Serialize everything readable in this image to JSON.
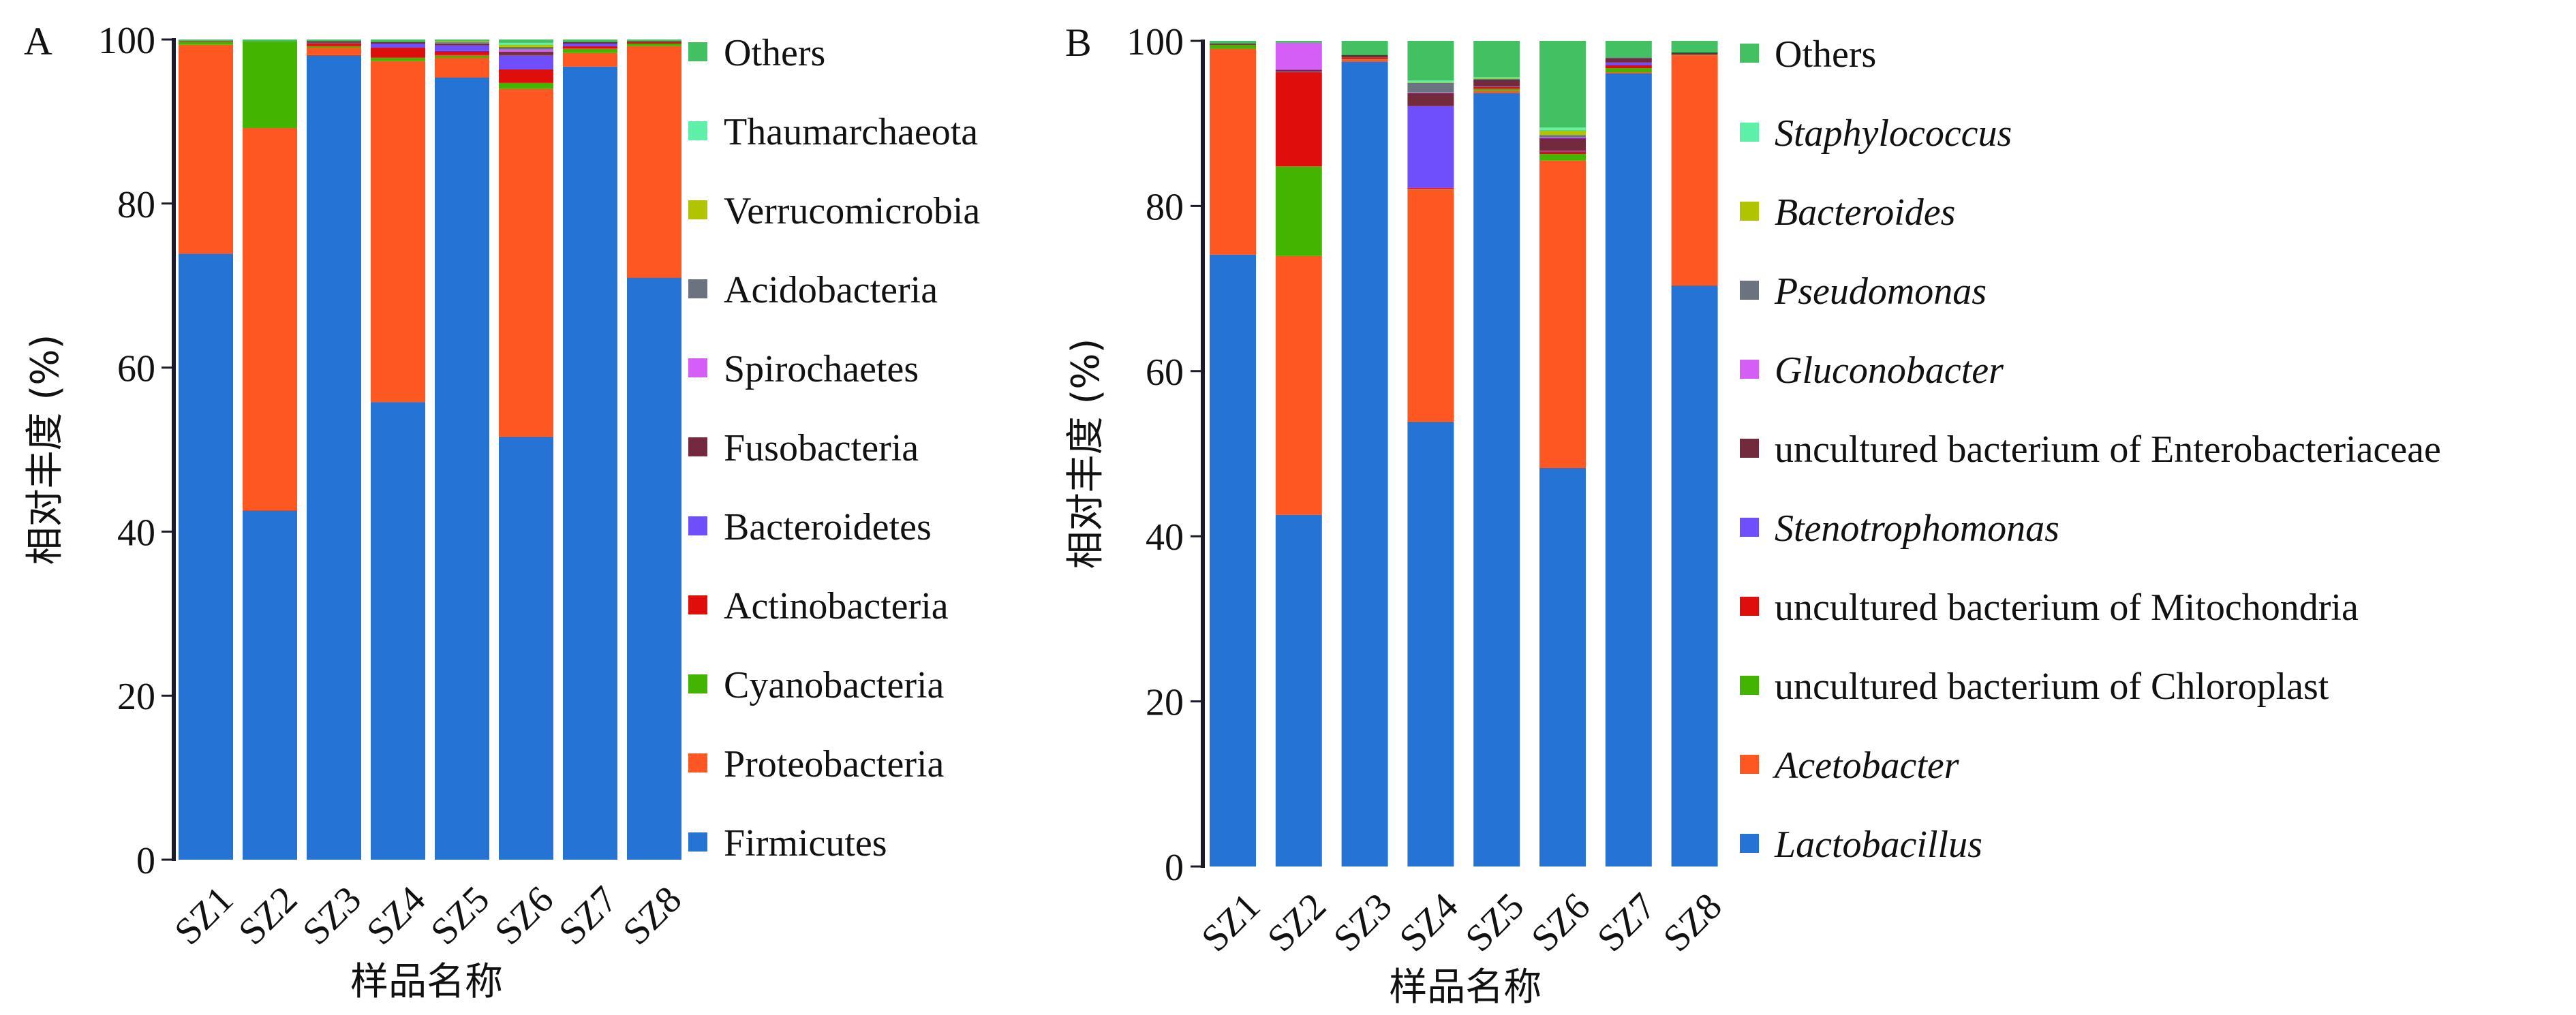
{
  "figure": {
    "panel_a_label": "A",
    "panel_b_label": "B"
  },
  "chart_data": [
    {
      "id": "A",
      "type": "bar",
      "stacked": true,
      "title": "",
      "panel_label": "A",
      "xlabel": "样品名称",
      "ylabel": "相对丰度 (%)",
      "ylim": [
        0,
        100
      ],
      "yticks": [
        0,
        20,
        40,
        60,
        80,
        100
      ],
      "grid": false,
      "legend_position": "right",
      "categories": [
        "SZ1",
        "SZ2",
        "SZ3",
        "SZ4",
        "SZ5",
        "SZ6",
        "SZ7",
        "SZ8"
      ],
      "series": [
        {
          "name": "Firmicutes",
          "italic": false,
          "color": "#2573d4",
          "values": [
            73.9,
            42.6,
            98.1,
            55.8,
            95.4,
            51.6,
            96.7,
            71.0
          ]
        },
        {
          "name": "Proteobacteria",
          "italic": false,
          "color": "#ff5722",
          "values": [
            25.5,
            46.6,
            0.9,
            41.6,
            2.4,
            42.4,
            1.7,
            28.2
          ]
        },
        {
          "name": "Cyanobacteria",
          "italic": false,
          "color": "#43b500",
          "values": [
            0.3,
            10.6,
            0.2,
            0.4,
            0.3,
            0.7,
            0.5,
            0.3
          ]
        },
        {
          "name": "Actinobacteria",
          "italic": false,
          "color": "#e00d0d",
          "values": [
            0.1,
            0.0,
            0.3,
            1.2,
            0.5,
            1.7,
            0.3,
            0.2
          ]
        },
        {
          "name": "Bacteroidetes",
          "italic": false,
          "color": "#6f4ffc",
          "values": [
            0.0,
            0.0,
            0.1,
            0.5,
            0.7,
            1.7,
            0.3,
            0.0
          ]
        },
        {
          "name": "Fusobacteria",
          "italic": false,
          "color": "#722a3c",
          "values": [
            0.0,
            0.0,
            0.2,
            0.2,
            0.2,
            0.4,
            0.2,
            0.1
          ]
        },
        {
          "name": "Spirochaetes",
          "italic": false,
          "color": "#d45ef6",
          "values": [
            0.0,
            0.0,
            0.0,
            0.0,
            0.1,
            0.3,
            0.0,
            0.0
          ]
        },
        {
          "name": "Acidobacteria",
          "italic": false,
          "color": "#6b7280",
          "values": [
            0.0,
            0.0,
            0.0,
            0.0,
            0.1,
            0.3,
            0.0,
            0.0
          ]
        },
        {
          "name": "Verrucomicrobia",
          "italic": false,
          "color": "#b0c400",
          "values": [
            0.0,
            0.0,
            0.0,
            0.0,
            0.1,
            0.3,
            0.0,
            0.0
          ]
        },
        {
          "name": "Thaumarchaeota",
          "italic": false,
          "color": "#5ef0a6",
          "values": [
            0.0,
            0.0,
            0.0,
            0.0,
            0.0,
            0.2,
            0.0,
            0.0
          ]
        },
        {
          "name": "Others",
          "italic": false,
          "color": "#43c061",
          "values": [
            0.2,
            0.2,
            0.2,
            0.3,
            0.2,
            0.4,
            0.3,
            0.2
          ]
        }
      ]
    },
    {
      "id": "B",
      "type": "bar",
      "stacked": true,
      "title": "",
      "panel_label": "B",
      "xlabel": "样品名称",
      "ylabel": "相对丰度 (%)",
      "ylim": [
        0,
        100
      ],
      "yticks": [
        0,
        20,
        40,
        60,
        80,
        100
      ],
      "grid": false,
      "legend_position": "right",
      "categories": [
        "SZ1",
        "SZ2",
        "SZ3",
        "SZ4",
        "SZ5",
        "SZ6",
        "SZ7",
        "SZ8"
      ],
      "series": [
        {
          "name": "Lactobacillus",
          "italic": true,
          "color": "#2573d4",
          "values": [
            74.1,
            42.6,
            97.5,
            53.9,
            93.7,
            48.3,
            96.1,
            70.4
          ]
        },
        {
          "name": "Acetobacter",
          "italic": true,
          "color": "#ff5722",
          "values": [
            25.0,
            31.4,
            0.2,
            28.1,
            0.3,
            37.2,
            0.1,
            27.8
          ]
        },
        {
          "name": "uncultured bacterium of Chloroplast",
          "italic": false,
          "color": "#43b500",
          "values": [
            0.4,
            10.8,
            0.1,
            0.1,
            0.2,
            0.8,
            0.5,
            0.1
          ]
        },
        {
          "name": "uncultured bacterium of Mitochondria",
          "italic": false,
          "color": "#e00d0d",
          "values": [
            0.1,
            11.4,
            0.2,
            0.1,
            0.2,
            0.3,
            0.4,
            0.1
          ]
        },
        {
          "name": "Stenotrophomonas",
          "italic": true,
          "color": "#6f4ffc",
          "values": [
            0.0,
            0.1,
            0.0,
            9.9,
            0.1,
            0.1,
            0.3,
            0.0
          ]
        },
        {
          "name": "uncultured bacterium of Enterobacteriaceae",
          "italic": false,
          "color": "#722a3c",
          "values": [
            0.1,
            0.2,
            0.3,
            1.6,
            0.8,
            1.5,
            0.5,
            0.2
          ]
        },
        {
          "name": "Gluconobacter",
          "italic": true,
          "color": "#d45ef6",
          "values": [
            0.0,
            3.3,
            0.0,
            0.1,
            0.0,
            0.1,
            0.0,
            0.0
          ]
        },
        {
          "name": "Pseudomonas",
          "italic": true,
          "color": "#6b7280",
          "values": [
            0.0,
            0.0,
            0.0,
            1.1,
            0.1,
            0.3,
            0.1,
            0.0
          ]
        },
        {
          "name": "Bacteroides",
          "italic": true,
          "color": "#b0c400",
          "values": [
            0.0,
            0.0,
            0.0,
            0.1,
            0.1,
            0.6,
            0.0,
            0.0
          ]
        },
        {
          "name": "Staphylococcus",
          "italic": true,
          "color": "#5ef0a6",
          "values": [
            0.0,
            0.0,
            0.0,
            0.2,
            0.1,
            0.3,
            0.0,
            0.0
          ]
        },
        {
          "name": "Others",
          "italic": false,
          "color": "#43c061",
          "values": [
            0.3,
            0.2,
            1.7,
            4.8,
            4.4,
            10.5,
            2.0,
            1.4
          ]
        }
      ]
    }
  ]
}
